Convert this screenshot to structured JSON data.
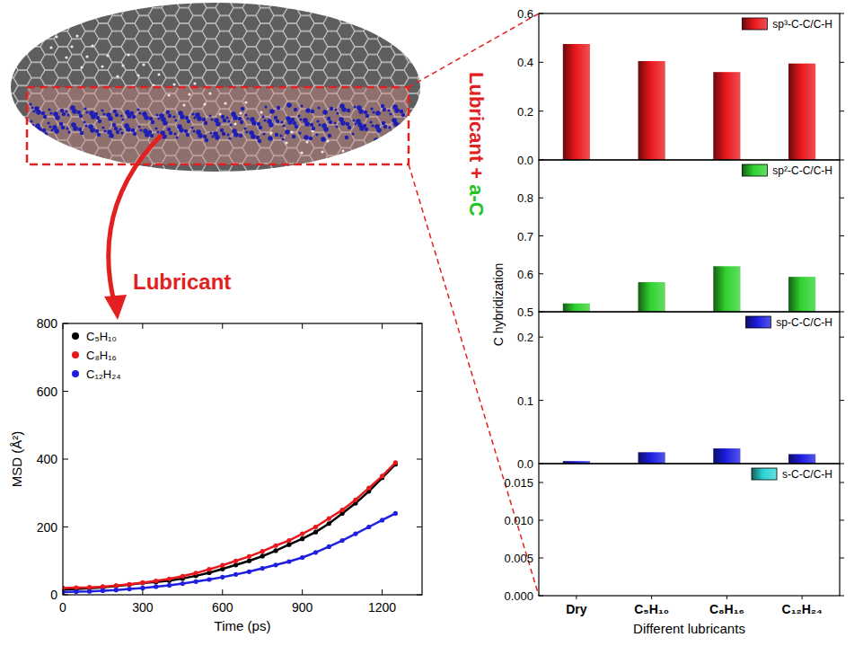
{
  "figure": {
    "lubricant_label": "Lubricant",
    "side_label": [
      "Lubricant +",
      "a-C"
    ]
  },
  "chart_data": [
    {
      "type": "line",
      "xlabel": "Time (ps)",
      "ylabel": "MSD (Å²)",
      "x": [
        0,
        50,
        100,
        150,
        200,
        250,
        300,
        350,
        400,
        450,
        500,
        550,
        600,
        650,
        700,
        750,
        800,
        850,
        900,
        950,
        1000,
        1050,
        1100,
        1150,
        1200,
        1250
      ],
      "series": [
        {
          "name": "C₅H₁₀",
          "color": "#000000",
          "marker": "circle",
          "values": [
            15,
            17,
            19,
            22,
            26,
            30,
            35,
            38,
            42,
            48,
            56,
            65,
            76,
            88,
            100,
            114,
            130,
            148,
            165,
            185,
            210,
            240,
            270,
            305,
            345,
            385
          ]
        },
        {
          "name": "C₈H₁₆",
          "color": "#e8191c",
          "marker": "circle",
          "values": [
            20,
            21,
            22,
            24,
            27,
            31,
            36,
            41,
            47,
            55,
            64,
            75,
            87,
            100,
            113,
            128,
            145,
            160,
            180,
            200,
            225,
            250,
            280,
            315,
            350,
            390
          ]
        },
        {
          "name": "C₁₂H₂₄",
          "color": "#1f1fe0",
          "marker": "circle",
          "values": [
            8,
            9,
            10,
            12,
            14,
            17,
            20,
            24,
            28,
            33,
            39,
            45,
            52,
            60,
            68,
            78,
            88,
            98,
            110,
            125,
            142,
            160,
            180,
            200,
            220,
            240
          ]
        }
      ],
      "xlim": [
        0,
        1350
      ],
      "xticks": [
        0,
        300,
        600,
        900,
        1200
      ],
      "ylim": [
        0,
        800
      ],
      "yticks": [
        0,
        200,
        400,
        600,
        800
      ],
      "legend": "upper left",
      "grid": false
    },
    {
      "type": "bar",
      "ylabel": "C hybridization",
      "categories": [
        "Dry",
        "C₅H₁₀",
        "C₈H₁₆",
        "C₁₂H₂₄"
      ],
      "series": [
        {
          "name": "sp³-C-C/C-H",
          "color": "#e8161b",
          "values": [
            0.475,
            0.405,
            0.36,
            0.395
          ]
        }
      ],
      "ylim": [
        0,
        0.6
      ],
      "yticks": [
        {
          "value": 0,
          "label": "0.0"
        },
        0.2,
        0.4,
        0.6
      ],
      "tick_labels": "y",
      "legend": "upper right",
      "grid": false
    },
    {
      "type": "bar",
      "categories": [
        "Dry",
        "C₅H₁₀",
        "C₈H₁₆",
        "C₁₂H₂₄"
      ],
      "series": [
        {
          "name": "sp²-C-C/C-H",
          "color": "#2fd12f",
          "values": [
            0.522,
            0.578,
            0.62,
            0.592
          ]
        }
      ],
      "ylim": [
        0.5,
        0.9
      ],
      "yticks": [
        0.5,
        0.6,
        0.7,
        0.8
      ],
      "tick_labels": "y",
      "legend": "upper right",
      "grid": false
    },
    {
      "type": "bar",
      "categories": [
        "Dry",
        "C₅H₁₀",
        "C₈H₁₆",
        "C₁₂H₂₄"
      ],
      "series": [
        {
          "name": "sp-C-C/C-H",
          "color": "#1c1ce0",
          "values": [
            0.004,
            0.018,
            0.024,
            0.015
          ]
        }
      ],
      "ylim": [
        0,
        0.24
      ],
      "yticks": [
        {
          "value": 0,
          "label": "0.0"
        },
        0.1,
        0.2
      ],
      "tick_labels": "y",
      "legend": "upper right",
      "grid": false
    },
    {
      "type": "bar",
      "xlabel": "Different lubricants",
      "categories": [
        "Dry",
        "C₅H₁₀",
        "C₈H₁₆",
        "C₁₂H₂₄"
      ],
      "series": [
        {
          "name": "s-C-C/C-H",
          "color": "#2ed3d3",
          "values": [
            0,
            0,
            0,
            0
          ]
        }
      ],
      "ylim": [
        0,
        0.0175
      ],
      "yticks": [
        {
          "value": 0,
          "label": "0.000"
        },
        {
          "value": 0.005,
          "label": "0.005"
        },
        {
          "value": 0.01,
          "label": "0.010"
        },
        {
          "value": 0.015,
          "label": "0.015"
        }
      ],
      "legend": "upper right",
      "grid": false
    }
  ]
}
